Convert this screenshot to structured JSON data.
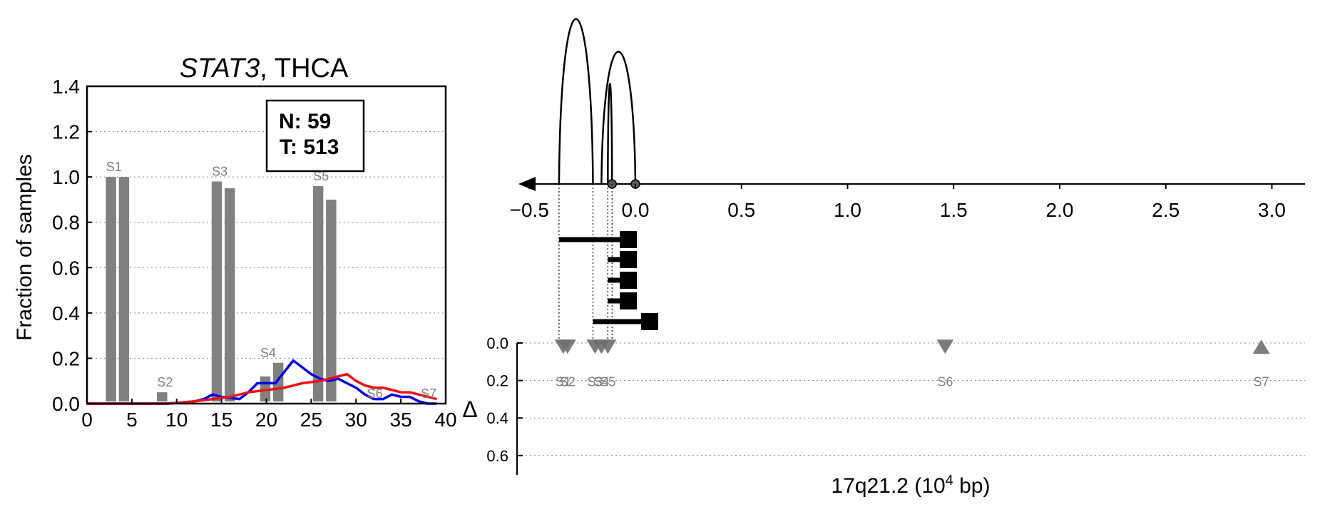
{
  "left_panel": {
    "title_gene": "STAT3",
    "title_sep": ",",
    "title_cancer": "THCA",
    "ylabel": "Fraction of samples",
    "legend_n": "N: 59",
    "legend_t": "T: 513"
  },
  "right_panel": {
    "xlabel": "17q21.2 (10",
    "xlabel_exp": "4",
    "xlabel_tail": " bp)",
    "delta_label": "Δ"
  },
  "colors": {
    "bar": "#808080",
    "normal_line": "#0000ee",
    "tumor_line": "#ee1111",
    "site_marker": "#6e6e6e",
    "text_site": "#808080"
  },
  "chart_data": [
    {
      "type": "bar",
      "title": "STAT3, THCA",
      "xlabel": "",
      "ylabel": "Fraction of samples",
      "xlim": [
        0,
        40
      ],
      "ylim": [
        0,
        1.4
      ],
      "xticks": [
        0,
        5,
        10,
        15,
        20,
        25,
        30,
        35,
        40
      ],
      "yticks": [
        "0.0",
        "0.2",
        "0.4",
        "0.6",
        "0.8",
        "1.0",
        "1.2",
        "1.4"
      ],
      "grid": "horizontal dotted",
      "legend": "top-right box",
      "bars": [
        {
          "site": "S1",
          "x": 2.1,
          "normal": 1.0,
          "tumor": 1.0
        },
        {
          "site": "S2",
          "x": 7.8,
          "normal": 0.05,
          "tumor": 0.0
        },
        {
          "site": "S3",
          "x": 13.9,
          "normal": 0.98,
          "tumor": 0.95
        },
        {
          "site": "S4",
          "x": 19.3,
          "normal": 0.12,
          "tumor": 0.18
        },
        {
          "site": "S5",
          "x": 25.2,
          "normal": 0.96,
          "tumor": 0.9
        },
        {
          "site": "S6",
          "x": 31.2,
          "normal": 0.0,
          "tumor": 0.0
        },
        {
          "site": "S7",
          "x": 37.2,
          "normal": 0.0,
          "tumor": 0.0
        }
      ],
      "series": [
        {
          "color": "blue",
          "x": [
            0,
            3,
            6,
            9,
            12,
            13,
            14,
            15,
            17,
            18,
            19,
            20,
            21,
            22,
            23,
            24,
            25,
            26,
            27,
            28,
            29,
            30,
            31,
            32,
            33,
            34,
            35,
            36,
            37,
            38,
            39
          ],
          "y": [
            0,
            0,
            0,
            0,
            0.01,
            0.02,
            0.04,
            0.03,
            0.02,
            0.05,
            0.09,
            0.09,
            0.09,
            0.14,
            0.19,
            0.16,
            0.13,
            0.11,
            0.1,
            0.11,
            0.09,
            0.07,
            0.04,
            0.02,
            0.02,
            0.04,
            0.03,
            0.03,
            0.01,
            0.0,
            0.0
          ]
        },
        {
          "color": "red",
          "x": [
            0,
            3,
            6,
            9,
            12,
            14,
            16,
            18,
            20,
            22,
            24,
            26,
            28,
            29,
            30,
            31,
            32,
            33,
            34,
            35,
            36,
            37,
            38,
            39
          ],
          "y": [
            0,
            0,
            0,
            0.0,
            0.01,
            0.02,
            0.03,
            0.05,
            0.06,
            0.07,
            0.09,
            0.1,
            0.12,
            0.13,
            0.1,
            0.08,
            0.07,
            0.07,
            0.06,
            0.05,
            0.05,
            0.04,
            0.03,
            0.02
          ]
        }
      ]
    },
    {
      "type": "scatter",
      "xlabel": "17q21.2 (10^4 bp)",
      "xlim": [
        -0.55,
        3.2
      ],
      "xticks": [
        "−0.5",
        "0.0",
        "0.5",
        "1.0",
        "1.5",
        "2.0",
        "2.5",
        "3.0"
      ],
      "delta_yticks": [
        "0.0",
        "0.2",
        "0.4",
        "0.6"
      ],
      "delta_ylim": [
        0,
        0.7
      ],
      "grid": "horizontal dotted",
      "sites": [
        {
          "label": "S1",
          "x": -0.34,
          "delta": 0.02,
          "marker": "down"
        },
        {
          "label": "S2",
          "x": -0.32,
          "delta": 0.02,
          "marker": "down"
        },
        {
          "label": "S3",
          "x": -0.19,
          "delta": 0.02,
          "marker": "down"
        },
        {
          "label": "S4",
          "x": -0.16,
          "delta": 0.02,
          "marker": "down"
        },
        {
          "label": "S5",
          "x": -0.13,
          "delta": 0.02,
          "marker": "down"
        },
        {
          "label": "S6",
          "x": 1.46,
          "delta": 0.02,
          "marker": "down"
        },
        {
          "label": "S7",
          "x": 2.95,
          "delta": 0.02,
          "marker": "up"
        }
      ],
      "arcs": [
        {
          "from": -0.36,
          "to": -0.2
        },
        {
          "from": -0.16,
          "to": 0.0
        },
        {
          "from": -0.13,
          "to": -0.11
        }
      ],
      "isoforms": [
        {
          "start": -0.36,
          "end": -0.07
        },
        {
          "start": -0.13,
          "end": -0.07
        },
        {
          "start": -0.13,
          "end": -0.07
        },
        {
          "start": -0.13,
          "end": -0.07
        },
        {
          "start": -0.2,
          "end": 0.03
        }
      ],
      "genome_points": [
        -0.11,
        0.0
      ]
    }
  ]
}
